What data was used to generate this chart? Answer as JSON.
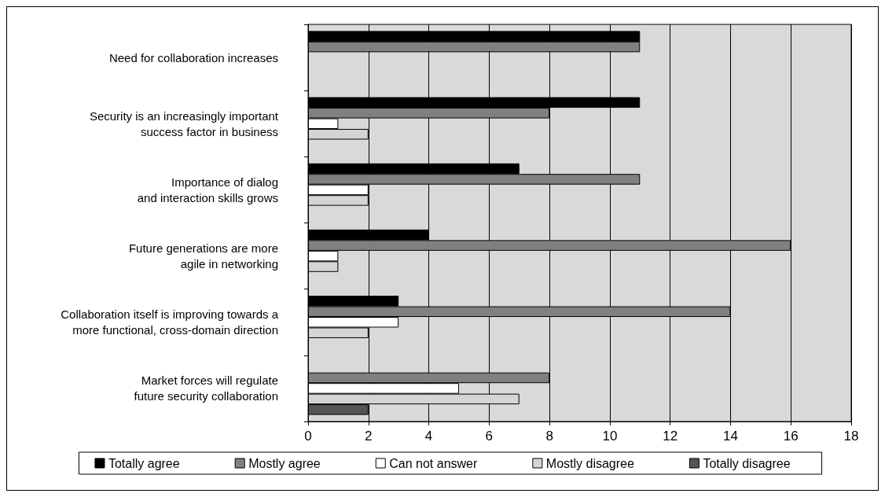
{
  "chart_data": {
    "type": "bar",
    "orientation": "horizontal",
    "categories": [
      "Need for collaboration increases",
      "Security is an increasingly important\nsuccess factor in business",
      "Importance of dialog\nand interaction skills grows",
      "Future generations are more\nagile in networking",
      "Collaboration itself is improving towards a\nmore functional, cross-domain direction",
      "Market forces will regulate\nfuture security collaboration"
    ],
    "series": [
      {
        "name": "Totally agree",
        "color": "#000000",
        "values": [
          11,
          11,
          7,
          4,
          3,
          null
        ]
      },
      {
        "name": "Mostly agree",
        "color": "#808080",
        "values": [
          11,
          8,
          11,
          16,
          14,
          8
        ]
      },
      {
        "name": "Can not answer",
        "color": "#ffffff",
        "values": [
          null,
          1,
          2,
          1,
          3,
          5
        ]
      },
      {
        "name": "Mostly disagree",
        "color": "#d4d4d4",
        "values": [
          null,
          2,
          2,
          1,
          2,
          7
        ]
      },
      {
        "name": "Totally disagree",
        "color": "#555555",
        "values": [
          null,
          null,
          null,
          null,
          null,
          2
        ]
      }
    ],
    "xlim": [
      0,
      18
    ],
    "xticks": [
      0,
      2,
      4,
      6,
      8,
      10,
      12,
      14,
      16,
      18
    ],
    "grid": "x",
    "legend": "bottom"
  }
}
